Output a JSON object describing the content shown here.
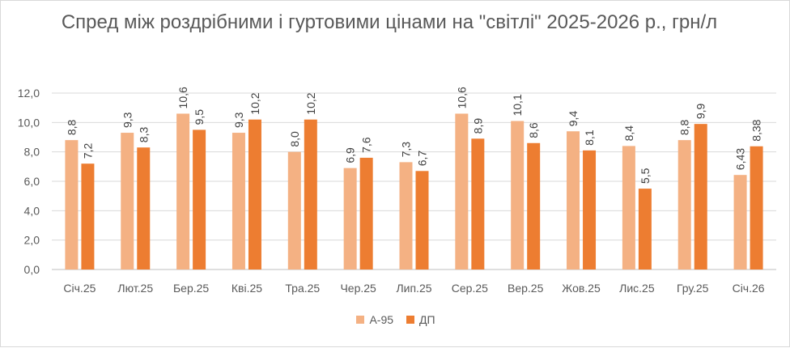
{
  "chart_data": {
    "type": "bar",
    "title": "Спред між роздрібними і гуртовими цінами на \"світлі\" 2025-2026 р., грн/л",
    "categories": [
      "Січ.25",
      "Лют.25",
      "Бер.25",
      "Кві.25",
      "Тра.25",
      "Чер.25",
      "Лип.25",
      "Сер.25",
      "Вер.25",
      "Жов.25",
      "Лис.25",
      "Гру.25",
      "Січ.26"
    ],
    "series": [
      {
        "name": "А-95",
        "color": "#f4b183",
        "values": [
          8.8,
          9.3,
          10.6,
          9.3,
          8.0,
          6.9,
          7.3,
          10.6,
          10.1,
          9.4,
          8.4,
          8.8,
          6.43
        ],
        "labels": [
          "8,8",
          "9,3",
          "10,6",
          "9,3",
          "8,0",
          "6,9",
          "7,3",
          "10,6",
          "10,1",
          "9,4",
          "8,4",
          "8,8",
          "6,43"
        ]
      },
      {
        "name": "ДП",
        "color": "#ed7d31",
        "values": [
          7.2,
          8.3,
          9.5,
          10.2,
          10.2,
          7.6,
          6.7,
          8.9,
          8.6,
          8.1,
          5.5,
          9.9,
          8.38
        ],
        "labels": [
          "7,2",
          "8,3",
          "9,5",
          "10,2",
          "10,2",
          "7,6",
          "6,7",
          "8,9",
          "8,6",
          "8,1",
          "5,5",
          "9,9",
          "8,38"
        ]
      }
    ],
    "ylim": [
      0,
      12
    ],
    "yticks": [
      0,
      2,
      4,
      6,
      8,
      10,
      12
    ],
    "ytick_labels": [
      "0,0",
      "2,0",
      "4,0",
      "6,0",
      "8,0",
      "10,0",
      "12,0"
    ],
    "grid": true,
    "legend": "bottom"
  }
}
